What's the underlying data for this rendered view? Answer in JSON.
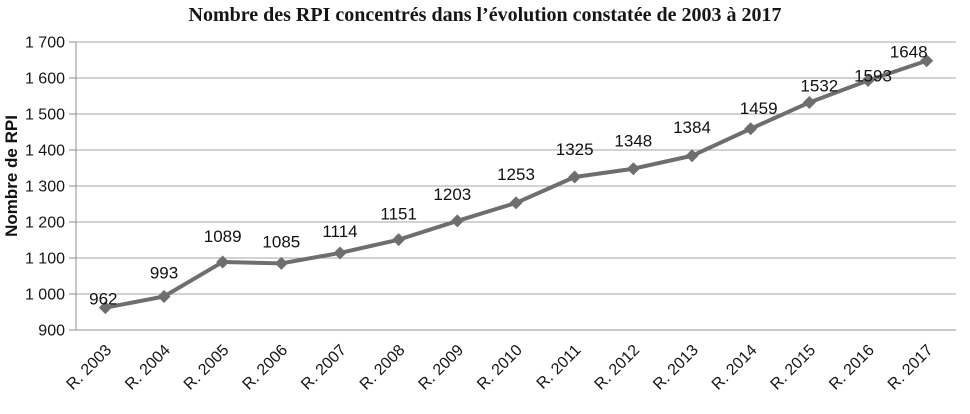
{
  "chart_data": {
    "type": "line",
    "title": "Nombre des RPI concentrés dans l’évolution constatée de 2003 à 2017",
    "xlabel": "",
    "ylabel": "Nombre de RPI",
    "categories": [
      "R. 2003",
      "R. 2004",
      "R. 2005",
      "R. 2006",
      "R. 2007",
      "R. 2008",
      "R. 2009",
      "R. 2010",
      "R. 2011",
      "R. 2012",
      "R. 2013",
      "R. 2014",
      "R. 2015",
      "R. 2016",
      "R. 2017"
    ],
    "values": [
      962,
      993,
      1089,
      1085,
      1114,
      1151,
      1203,
      1253,
      1325,
      1348,
      1384,
      1459,
      1532,
      1593,
      1648
    ],
    "data_labels": [
      "962",
      "993",
      "1089",
      "1085",
      "1114",
      "1151",
      "1203",
      "1253",
      "1325",
      "1348",
      "1384",
      "1459",
      "1532",
      "1593",
      "1648"
    ],
    "ylim": [
      900,
      1700
    ],
    "ytick_step": 100,
    "ytick_labels": [
      "900",
      "1 000",
      "1 100",
      "1 200",
      "1 300",
      "1 400",
      "1 500",
      "1 600",
      "1 700"
    ],
    "grid": true,
    "legend_position": "none",
    "series_name": "Nombre des RPI",
    "marker": "diamond",
    "colors": {
      "series_line": "#6e6e6e",
      "marker_fill": "#6e6e6e",
      "gridline": "#a6a6a6",
      "axis_line": "#8f8f8f",
      "text": "#151515",
      "background": "#ffffff"
    }
  }
}
